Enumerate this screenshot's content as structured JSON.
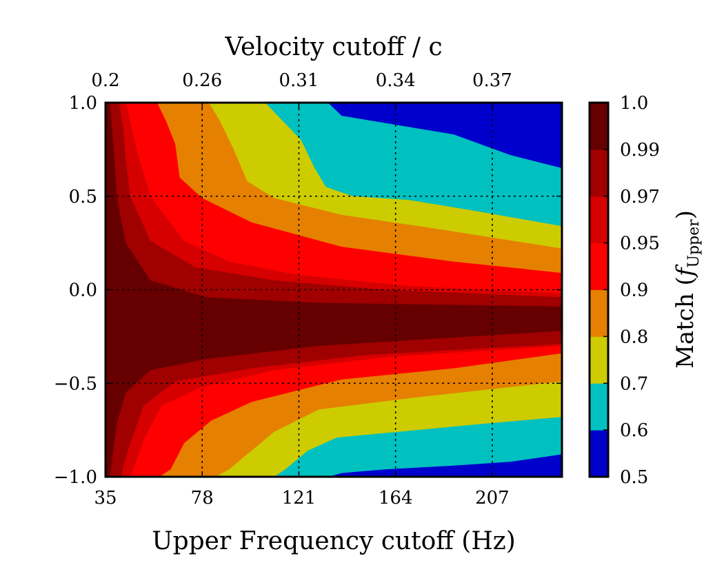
{
  "chart_data": {
    "type": "contour",
    "title": "",
    "xlabel": "Upper Frequency cutoff (Hz)",
    "ylabel": "",
    "top_xlabel": "Velocity cutoff / c",
    "colorbar_label": "Match (",
    "colorbar_label_italic": "f",
    "colorbar_label_sub": "Upper",
    "colorbar_label_close": ")",
    "xlim": [
      35,
      238
    ],
    "ylim": [
      -1.0,
      1.0
    ],
    "x_ticks": [
      35,
      78,
      121,
      164,
      207
    ],
    "x_tick_labels": [
      "35",
      "78",
      "121",
      "164",
      "207"
    ],
    "y_ticks": [
      -1.0,
      -0.5,
      0.0,
      0.5,
      1.0
    ],
    "y_tick_labels": [
      "−1.0",
      "−0.5",
      "0.0",
      "0.5",
      "1.0"
    ],
    "top_x_tick_positions": [
      35,
      78,
      121,
      164,
      207
    ],
    "top_x_tick_labels": [
      "0.2",
      "0.26",
      "0.31",
      "0.34",
      "0.37"
    ],
    "grid": true,
    "levels": [
      0.5,
      0.6,
      0.7,
      0.8,
      0.9,
      0.95,
      0.97,
      0.99,
      1.0
    ],
    "level_labels": [
      "0.5",
      "0.6",
      "0.7",
      "0.8",
      "0.9",
      "0.95",
      "0.97",
      "0.99",
      "1.0"
    ],
    "band_colors": [
      "#0000cc",
      "#00c0c0",
      "#cccc00",
      "#e68000",
      "#ff0000",
      "#d60000",
      "#a00000",
      "#660000"
    ],
    "boundaries": [
      {
        "level": 0.6,
        "upper": [
          [
            134,
            1.0
          ],
          [
            140,
            0.93
          ],
          [
            160,
            0.89
          ],
          [
            190,
            0.83
          ],
          [
            215,
            0.72
          ],
          [
            238,
            0.65
          ]
        ],
        "lower": [
          [
            134,
            -1.0
          ],
          [
            140,
            -0.98
          ],
          [
            160,
            -0.96
          ],
          [
            190,
            -0.94
          ],
          [
            215,
            -0.92
          ],
          [
            238,
            -0.88
          ]
        ]
      },
      {
        "level": 0.7,
        "upper": [
          [
            106,
            1.0
          ],
          [
            114,
            0.9
          ],
          [
            122,
            0.8
          ],
          [
            128,
            0.65
          ],
          [
            133,
            0.55
          ],
          [
            145,
            0.5
          ],
          [
            170,
            0.48
          ],
          [
            200,
            0.42
          ],
          [
            238,
            0.34
          ]
        ],
        "lower": [
          [
            110,
            -1.0
          ],
          [
            115,
            -0.96
          ],
          [
            125,
            -0.86
          ],
          [
            138,
            -0.79
          ],
          [
            165,
            -0.76
          ],
          [
            200,
            -0.72
          ],
          [
            238,
            -0.68
          ]
        ]
      },
      {
        "level": 0.8,
        "upper": [
          [
            81,
            1.0
          ],
          [
            86,
            0.9
          ],
          [
            92,
            0.75
          ],
          [
            98,
            0.58
          ],
          [
            110,
            0.49
          ],
          [
            140,
            0.4
          ],
          [
            180,
            0.33
          ],
          [
            238,
            0.22
          ]
        ],
        "lower": [
          [
            84,
            -1.0
          ],
          [
            90,
            -0.96
          ],
          [
            98,
            -0.88
          ],
          [
            110,
            -0.76
          ],
          [
            130,
            -0.64
          ],
          [
            170,
            -0.58
          ],
          [
            238,
            -0.49
          ]
        ]
      },
      {
        "level": 0.9,
        "upper": [
          [
            58,
            1.0
          ],
          [
            62,
            0.9
          ],
          [
            66,
            0.78
          ],
          [
            68,
            0.6
          ],
          [
            78,
            0.49
          ],
          [
            100,
            0.36
          ],
          [
            140,
            0.23
          ],
          [
            190,
            0.15
          ],
          [
            238,
            0.09
          ]
        ],
        "lower": [
          [
            59,
            -1.0
          ],
          [
            64,
            -0.96
          ],
          [
            70,
            -0.82
          ],
          [
            82,
            -0.7
          ],
          [
            100,
            -0.6
          ],
          [
            140,
            -0.48
          ],
          [
            190,
            -0.42
          ],
          [
            238,
            -0.34
          ]
        ]
      },
      {
        "level": 0.95,
        "upper": [
          [
            44,
            1.0
          ],
          [
            47,
            0.85
          ],
          [
            50,
            0.7
          ],
          [
            55,
            0.5
          ],
          [
            70,
            0.26
          ],
          [
            90,
            0.15
          ],
          [
            120,
            0.08
          ],
          [
            170,
            0.02
          ],
          [
            238,
            -0.02
          ]
        ],
        "lower": [
          [
            46,
            -1.0
          ],
          [
            48,
            -0.94
          ],
          [
            52,
            -0.8
          ],
          [
            60,
            -0.62
          ],
          [
            78,
            -0.52
          ],
          [
            110,
            -0.43
          ],
          [
            160,
            -0.36
          ],
          [
            238,
            -0.3
          ]
        ]
      },
      {
        "level": 0.97,
        "upper": [
          [
            41,
            1.0
          ],
          [
            43,
            0.85
          ],
          [
            44,
            0.7
          ],
          [
            46,
            0.5
          ],
          [
            55,
            0.26
          ],
          [
            75,
            0.12
          ],
          [
            110,
            0.05
          ],
          [
            160,
            0.0
          ],
          [
            238,
            -0.04
          ]
        ],
        "lower": [
          [
            42,
            -1.0
          ],
          [
            43,
            -0.94
          ],
          [
            46,
            -0.82
          ],
          [
            52,
            -0.62
          ],
          [
            66,
            -0.49
          ],
          [
            100,
            -0.42
          ],
          [
            150,
            -0.35
          ],
          [
            238,
            -0.29
          ]
        ]
      },
      {
        "level": 0.99,
        "upper": [
          [
            37,
            1.0
          ],
          [
            38,
            0.85
          ],
          [
            39,
            0.7
          ],
          [
            40,
            0.5
          ],
          [
            44,
            0.25
          ],
          [
            55,
            0.05
          ],
          [
            80,
            -0.04
          ],
          [
            130,
            -0.07
          ],
          [
            238,
            -0.09
          ]
        ],
        "lower": [
          [
            37,
            -1.0
          ],
          [
            38,
            -0.9
          ],
          [
            40,
            -0.72
          ],
          [
            44,
            -0.55
          ],
          [
            55,
            -0.43
          ],
          [
            80,
            -0.37
          ],
          [
            130,
            -0.3
          ],
          [
            238,
            -0.22
          ]
        ]
      }
    ]
  }
}
